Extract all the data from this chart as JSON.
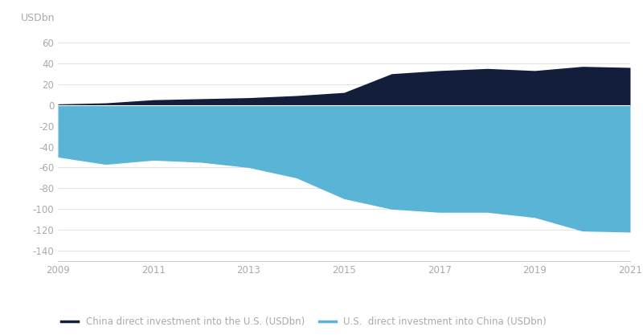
{
  "years": [
    2009,
    2010,
    2011,
    2012,
    2013,
    2014,
    2015,
    2016,
    2017,
    2018,
    2019,
    2020,
    2021
  ],
  "china_to_us": [
    1,
    2,
    5,
    6,
    7,
    9,
    12,
    30,
    33,
    35,
    33,
    37,
    36
  ],
  "us_to_china": [
    -50,
    -57,
    -53,
    -55,
    -60,
    -70,
    -90,
    -100,
    -103,
    -103,
    -108,
    -121,
    -122
  ],
  "china_color": "#131e3a",
  "us_color": "#5ab4d6",
  "background_color": "#ffffff",
  "ylabel": "USDbn",
  "ylim": [
    -150,
    75
  ],
  "yticks": [
    -140,
    -120,
    -100,
    -80,
    -60,
    -40,
    -20,
    0,
    20,
    40,
    60
  ],
  "xticks": [
    2009,
    2011,
    2013,
    2015,
    2017,
    2019,
    2021
  ],
  "legend_china": "China direct investment into the U.S. (USDbn)",
  "legend_us": "U.S.  direct investment into China (USDbn)",
  "tick_color": "#aaaaaa",
  "grid_color": "#dddddd",
  "spine_color": "#cccccc"
}
